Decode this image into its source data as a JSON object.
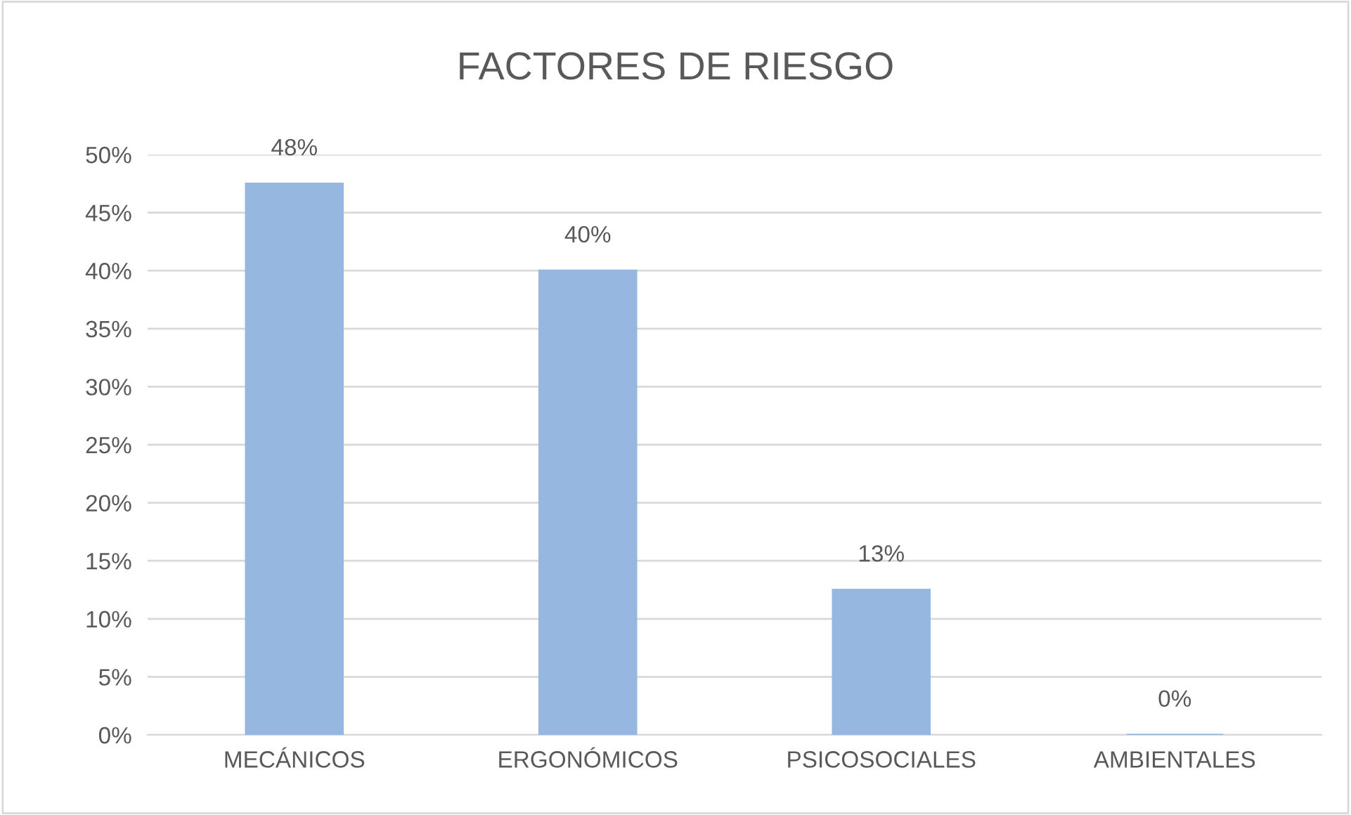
{
  "chart_data": {
    "type": "bar",
    "title": "FACTORES DE RIESGO",
    "categories": [
      "MECÁNICOS",
      "ERGONÓMICOS",
      "PSICOSOCIALES",
      "AMBIENTALES"
    ],
    "values": [
      47.5,
      40,
      12.5,
      0
    ],
    "value_labels": [
      "48%",
      "40%",
      "13%",
      "0%"
    ],
    "color": "#95b7e0",
    "ylim": [
      0,
      50
    ],
    "yticks": [
      {
        "value": 0,
        "label": "0%"
      },
      {
        "value": 5,
        "label": "5%"
      },
      {
        "value": 10,
        "label": "10%"
      },
      {
        "value": 15,
        "label": "15%"
      },
      {
        "value": 20,
        "label": "20%"
      },
      {
        "value": 25,
        "label": "25%"
      },
      {
        "value": 30,
        "label": "30%"
      },
      {
        "value": 35,
        "label": "35%"
      },
      {
        "value": 40,
        "label": "40%"
      },
      {
        "value": 45,
        "label": "45%"
      },
      {
        "value": 50,
        "label": "50%"
      }
    ],
    "grid": "y",
    "legend": false
  }
}
